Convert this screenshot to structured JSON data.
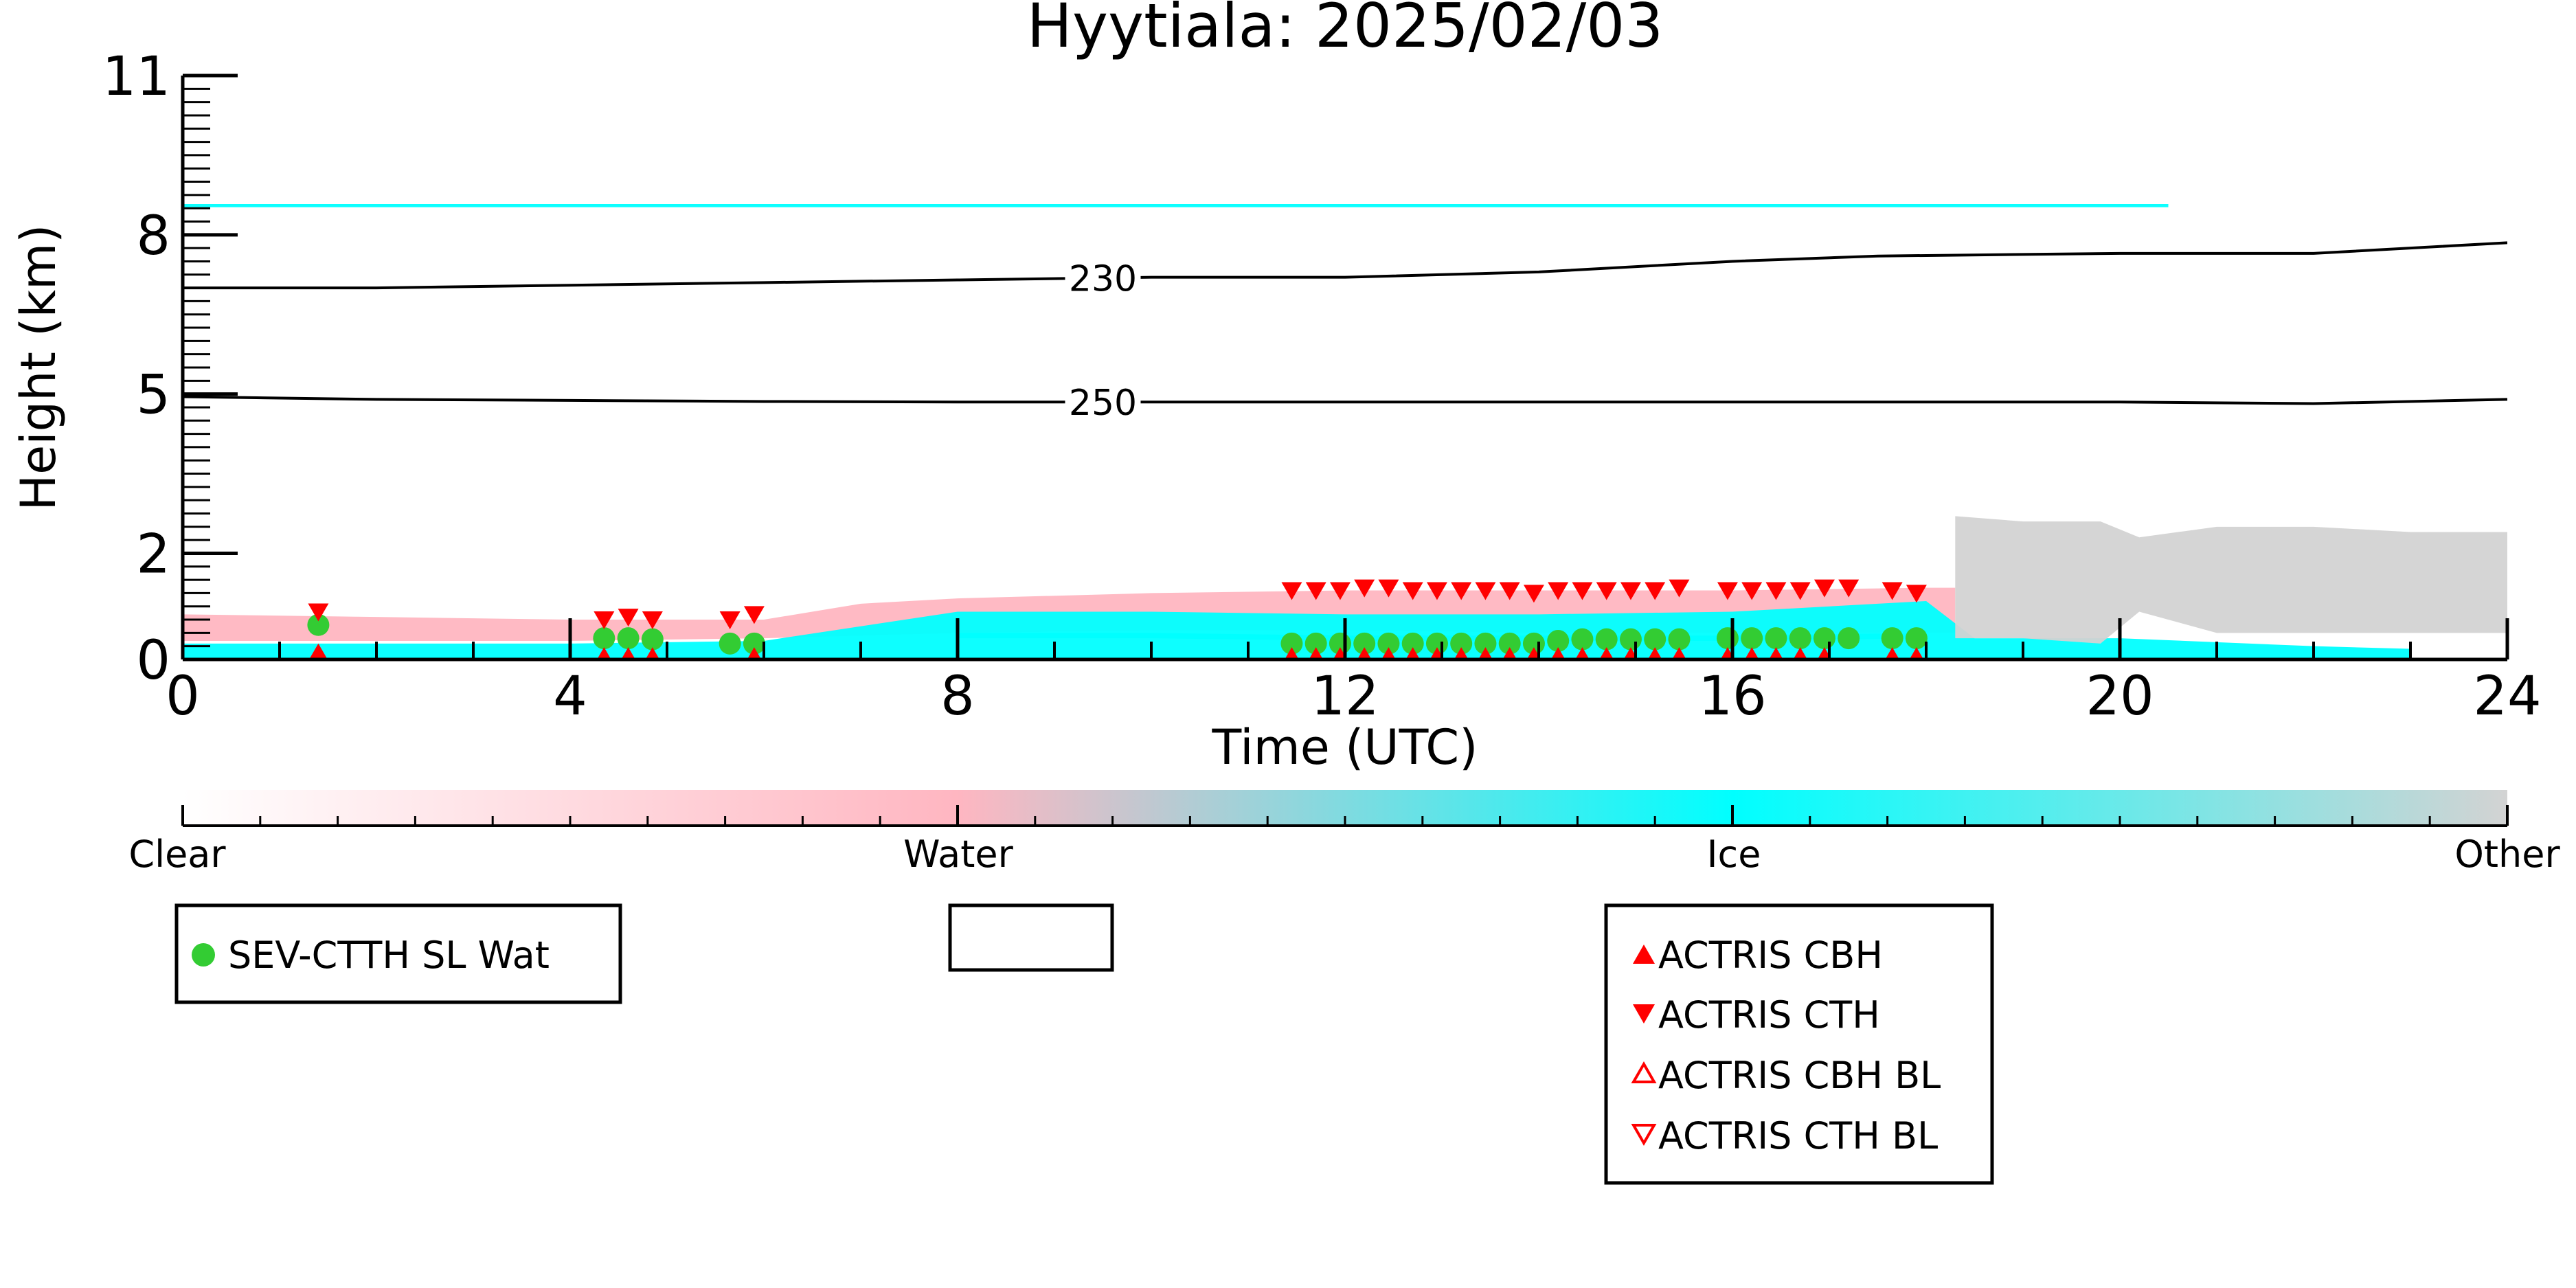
{
  "chart_data": {
    "type": "scatter",
    "title": "Hyytiala: 2025/02/03",
    "xlabel": "Time (UTC)",
    "ylabel": "Height (km)",
    "xlim": [
      0,
      24
    ],
    "ylim": [
      0,
      11
    ],
    "x_ticks": [
      0,
      4,
      8,
      12,
      16,
      20,
      24
    ],
    "y_ticks": [
      0,
      2,
      5,
      8,
      11
    ],
    "grid": false,
    "colorbar": {
      "labels": [
        "Clear",
        "Water",
        "Ice",
        "Other"
      ],
      "colors": {
        "clear": "#ffffff",
        "water": "#ffb6c1",
        "ice": "#00ffff",
        "other": "#d3d3d3"
      }
    },
    "contours": [
      {
        "label": "230",
        "x": [
          0,
          2,
          4,
          6,
          8,
          10,
          12,
          14,
          16,
          17.5,
          20,
          22,
          24
        ],
        "y": [
          7.0,
          7.0,
          7.05,
          7.1,
          7.15,
          7.2,
          7.2,
          7.3,
          7.5,
          7.6,
          7.65,
          7.65,
          7.85
        ]
      },
      {
        "label": "250",
        "x": [
          0,
          2,
          4,
          6,
          8,
          10,
          12,
          14,
          16,
          18,
          20,
          22,
          24
        ],
        "y": [
          4.95,
          4.9,
          4.88,
          4.86,
          4.85,
          4.85,
          4.85,
          4.85,
          4.85,
          4.85,
          4.85,
          4.82,
          4.9
        ]
      }
    ],
    "regions": [
      {
        "class": "water",
        "x": [
          0,
          2,
          4,
          6,
          7,
          8,
          10,
          12,
          14,
          16,
          18,
          18.3
        ],
        "top": [
          0.85,
          0.8,
          0.75,
          0.75,
          1.05,
          1.15,
          1.25,
          1.3,
          1.3,
          1.3,
          1.35,
          1.35
        ],
        "bottom": [
          0.35,
          0.35,
          0.35,
          0.4,
          0.45,
          0.5,
          0.55,
          0.55,
          0.5,
          0.5,
          0.5,
          0.5
        ]
      },
      {
        "class": "ice",
        "x": [
          0,
          2,
          4,
          6,
          8,
          10,
          12,
          14,
          16,
          18,
          18.5,
          20,
          22,
          23
        ],
        "top": [
          0.3,
          0.3,
          0.3,
          0.35,
          0.9,
          0.9,
          0.85,
          0.85,
          0.9,
          1.1,
          0.4,
          0.4,
          0.25,
          0.2
        ],
        "bottom": [
          0,
          0,
          0,
          0,
          0,
          0,
          0,
          0,
          0,
          0,
          0,
          0,
          0,
          0
        ]
      },
      {
        "class": "ice",
        "x": [
          8,
          10,
          12,
          14,
          16,
          18
        ],
        "top": [
          0.5,
          0.5,
          0.45,
          0.45,
          0.45,
          0.5
        ],
        "bottom": [
          0.4,
          0.4,
          0.35,
          0.35,
          0.35,
          0.4
        ]
      },
      {
        "class": "other",
        "x": [
          18.3,
          19,
          19.8,
          20.2,
          21,
          22,
          23,
          24
        ],
        "top": [
          2.7,
          2.6,
          2.6,
          2.3,
          2.5,
          2.5,
          2.4,
          2.4
        ],
        "bottom": [
          0.4,
          0.4,
          0.3,
          0.9,
          0.5,
          0.5,
          0.5,
          0.5
        ]
      },
      {
        "class": "ice",
        "x": [
          0,
          2,
          4,
          6,
          8,
          10,
          12,
          14,
          16,
          17,
          18.5,
          20.5
        ],
        "top": [
          8.58,
          8.58,
          8.58,
          8.58,
          8.58,
          8.58,
          8.58,
          8.58,
          8.58,
          8.58,
          8.58,
          8.58
        ],
        "bottom": [
          8.52,
          8.52,
          8.52,
          8.52,
          8.52,
          8.52,
          8.52,
          8.52,
          8.52,
          8.52,
          8.52,
          8.52
        ]
      }
    ],
    "series": [
      {
        "name": "SEV-CTTH SL Wat",
        "marker": "circle",
        "color": "#33cc33",
        "x": [
          1.4,
          4.35,
          4.6,
          4.85,
          5.65,
          5.9,
          11.45,
          11.7,
          11.95,
          12.2,
          12.45,
          12.7,
          12.95,
          13.2,
          13.45,
          13.7,
          13.95,
          14.2,
          14.45,
          14.7,
          14.95,
          15.2,
          15.45,
          15.95,
          16.2,
          16.45,
          16.7,
          16.95,
          17.2,
          17.65,
          17.9
        ],
        "y": [
          0.65,
          0.4,
          0.4,
          0.38,
          0.3,
          0.3,
          0.3,
          0.3,
          0.3,
          0.3,
          0.3,
          0.3,
          0.3,
          0.3,
          0.3,
          0.3,
          0.3,
          0.35,
          0.38,
          0.38,
          0.38,
          0.38,
          0.38,
          0.4,
          0.4,
          0.4,
          0.4,
          0.4,
          0.4,
          0.4,
          0.4
        ]
      },
      {
        "name": "ACTRIS CBH",
        "marker": "triangle-up",
        "color": "#ff0000",
        "x": [
          1.4,
          4.35,
          4.6,
          4.85,
          5.9,
          11.45,
          11.7,
          11.95,
          12.2,
          12.45,
          12.7,
          12.95,
          13.2,
          13.45,
          13.7,
          13.95,
          14.2,
          14.45,
          14.7,
          14.95,
          15.2,
          15.45,
          15.95,
          16.2,
          16.45,
          16.7,
          16.95,
          17.65,
          17.9
        ],
        "y": [
          0.12,
          0.05,
          0.05,
          0.05,
          0.05,
          0.05,
          0.05,
          0.05,
          0.05,
          0.05,
          0.05,
          0.05,
          0.05,
          0.05,
          0.05,
          0.05,
          0.05,
          0.05,
          0.05,
          0.05,
          0.05,
          0.05,
          0.05,
          0.05,
          0.05,
          0.05,
          0.05,
          0.05,
          0.05
        ]
      },
      {
        "name": "ACTRIS CTH",
        "marker": "triangle-down",
        "color": "#ff0000",
        "x": [
          1.4,
          4.35,
          4.6,
          4.85,
          5.65,
          5.9,
          11.45,
          11.7,
          11.95,
          12.2,
          12.45,
          12.7,
          12.95,
          13.2,
          13.45,
          13.7,
          13.95,
          14.2,
          14.45,
          14.7,
          14.95,
          15.2,
          15.45,
          15.95,
          16.2,
          16.45,
          16.7,
          16.95,
          17.2,
          17.65,
          17.9
        ],
        "y": [
          0.9,
          0.75,
          0.8,
          0.75,
          0.75,
          0.85,
          1.3,
          1.3,
          1.3,
          1.35,
          1.35,
          1.3,
          1.3,
          1.3,
          1.3,
          1.3,
          1.25,
          1.3,
          1.3,
          1.3,
          1.3,
          1.3,
          1.35,
          1.3,
          1.3,
          1.3,
          1.3,
          1.35,
          1.35,
          1.3,
          1.25
        ]
      },
      {
        "name": "ACTRIS CBH BL",
        "marker": "triangle-up-open",
        "color": "#ff0000",
        "x": [],
        "y": []
      },
      {
        "name": "ACTRIS CTH BL",
        "marker": "triangle-down-open",
        "color": "#ff0000",
        "x": [],
        "y": []
      }
    ],
    "legends": [
      {
        "placement": "bottom-left",
        "entries": [
          "SEV-CTTH SL Wat"
        ]
      },
      {
        "placement": "bottom-center",
        "entries": []
      },
      {
        "placement": "bottom-right",
        "entries": [
          "ACTRIS CBH",
          "ACTRIS CTH",
          "ACTRIS CBH BL",
          "ACTRIS CTH BL"
        ]
      }
    ]
  }
}
